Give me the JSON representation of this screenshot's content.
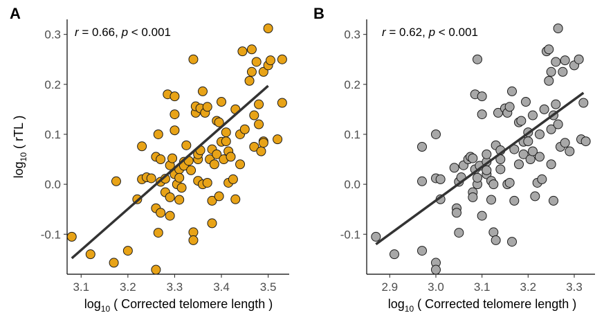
{
  "figure": {
    "ylabel_prefix": "log",
    "ylabel_sub": "10",
    "ylabel_suffix": " ( rTL )",
    "xlabel_prefix": "log",
    "xlabel_sub": "10",
    "xlabel_suffix": " ( Corrected telomere length )"
  },
  "chart_data": [
    {
      "type": "scatter",
      "panel": "A",
      "annotation": {
        "r_symbol": "r",
        "r_text": " = 0.66, ",
        "p_symbol": "p",
        "p_text": " < 0.001"
      },
      "point_color": "#E8A317",
      "line_color": "#333333",
      "xlim": [
        3.07,
        3.545
      ],
      "ylim": [
        -0.18,
        0.33
      ],
      "xticks": [
        3.1,
        3.2,
        3.3,
        3.4,
        3.5
      ],
      "xtick_labels": [
        "3.1",
        "3.2",
        "3.3",
        "3.4",
        "3.5"
      ],
      "yticks": [
        -0.1,
        0.0,
        0.1,
        0.2,
        0.3
      ],
      "ytick_labels": [
        "-0.1",
        "0.0",
        "0.1",
        "0.2",
        "0.3"
      ],
      "fit_line": {
        "x": [
          3.08,
          3.5
        ],
        "y": [
          -0.148,
          0.197
        ]
      },
      "points": [
        [
          3.08,
          -0.105
        ],
        [
          3.12,
          -0.14
        ],
        [
          3.17,
          -0.157
        ],
        [
          3.175,
          0.006
        ],
        [
          3.2,
          -0.133
        ],
        [
          3.22,
          -0.03
        ],
        [
          3.23,
          0.01
        ],
        [
          3.23,
          0.076
        ],
        [
          3.24,
          0.014
        ],
        [
          3.25,
          0.012
        ],
        [
          3.26,
          -0.171
        ],
        [
          3.26,
          -0.048
        ],
        [
          3.265,
          -0.097
        ],
        [
          3.26,
          0.055
        ],
        [
          3.265,
          0.1
        ],
        [
          3.27,
          -0.057
        ],
        [
          3.27,
          0.005
        ],
        [
          3.27,
          0.05
        ],
        [
          3.28,
          -0.016
        ],
        [
          3.28,
          0.011
        ],
        [
          3.285,
          0.18
        ],
        [
          3.29,
          -0.026
        ],
        [
          3.29,
          -0.063
        ],
        [
          3.29,
          0.038
        ],
        [
          3.295,
          0.052
        ],
        [
          3.3,
          0.02
        ],
        [
          3.3,
          0.108
        ],
        [
          3.3,
          0.14
        ],
        [
          3.3,
          0.176
        ],
        [
          3.305,
          0.0
        ],
        [
          3.31,
          -0.031
        ],
        [
          3.31,
          0.03
        ],
        [
          3.31,
          0.013
        ],
        [
          3.315,
          -0.007
        ],
        [
          3.32,
          0.045
        ],
        [
          3.32,
          0.037
        ],
        [
          3.325,
          0.078
        ],
        [
          3.33,
          0.047
        ],
        [
          3.335,
          0.028
        ],
        [
          3.34,
          0.25
        ],
        [
          3.34,
          -0.096
        ],
        [
          3.34,
          -0.112
        ],
        [
          3.345,
          0.143
        ],
        [
          3.345,
          0.156
        ],
        [
          3.35,
          0.05
        ],
        [
          3.35,
          0.007
        ],
        [
          3.35,
          0.06
        ],
        [
          3.355,
          0.068
        ],
        [
          3.355,
          0.152
        ],
        [
          3.36,
          0.186
        ],
        [
          3.36,
          0.0
        ],
        [
          3.365,
          0.143
        ],
        [
          3.37,
          0.155
        ],
        [
          3.37,
          0.003
        ],
        [
          3.375,
          0.05
        ],
        [
          3.38,
          -0.033
        ],
        [
          3.38,
          -0.078
        ],
        [
          3.38,
          0.07
        ],
        [
          3.385,
          0.04
        ],
        [
          3.39,
          0.127
        ],
        [
          3.39,
          0.06
        ],
        [
          3.395,
          0.124
        ],
        [
          3.395,
          -0.024
        ],
        [
          3.4,
          0.165
        ],
        [
          3.4,
          0.085
        ],
        [
          3.405,
          0.05
        ],
        [
          3.41,
          0.104
        ],
        [
          3.41,
          0.086
        ],
        [
          3.415,
          0.066
        ],
        [
          3.415,
          0.003
        ],
        [
          3.42,
          0.055
        ],
        [
          3.425,
          0.01
        ],
        [
          3.43,
          -0.03
        ],
        [
          3.43,
          0.15
        ],
        [
          3.44,
          0.1
        ],
        [
          3.44,
          0.04
        ],
        [
          3.445,
          0.266
        ],
        [
          3.45,
          0.11
        ],
        [
          3.46,
          0.207
        ],
        [
          3.465,
          0.27
        ],
        [
          3.465,
          0.225
        ],
        [
          3.47,
          0.138
        ],
        [
          3.47,
          0.075
        ],
        [
          3.475,
          0.245
        ],
        [
          3.48,
          0.16
        ],
        [
          3.48,
          0.12
        ],
        [
          3.485,
          0.066
        ],
        [
          3.49,
          0.225
        ],
        [
          3.49,
          0.086
        ],
        [
          3.49,
          0.083
        ],
        [
          3.5,
          0.312
        ],
        [
          3.5,
          0.238
        ],
        [
          3.505,
          0.248
        ],
        [
          3.52,
          0.09
        ],
        [
          3.53,
          0.25
        ],
        [
          3.53,
          0.163
        ]
      ]
    },
    {
      "type": "scatter",
      "panel": "B",
      "annotation": {
        "r_symbol": "r",
        "r_text": " = 0.62, ",
        "p_symbol": "p",
        "p_text": " < 0.001"
      },
      "point_color": "#A8A8A8",
      "line_color": "#333333",
      "xlim": [
        2.85,
        3.345
      ],
      "ylim": [
        -0.18,
        0.33
      ],
      "xticks": [
        2.9,
        3.0,
        3.1,
        3.2,
        3.3
      ],
      "xtick_labels": [
        "2.9",
        "3.0",
        "3.1",
        "3.2",
        "3.3"
      ],
      "yticks": [
        -0.1,
        0.0,
        0.1,
        0.2,
        0.3
      ],
      "ytick_labels": [
        "-0.1",
        "0.0",
        "0.1",
        "0.2",
        "0.3"
      ],
      "fit_line": {
        "x": [
          2.87,
          3.32
        ],
        "y": [
          -0.12,
          0.183
        ]
      },
      "points": [
        [
          2.87,
          -0.105
        ],
        [
          2.91,
          -0.14
        ],
        [
          2.97,
          -0.133
        ],
        [
          2.97,
          0.075
        ],
        [
          2.97,
          0.006
        ],
        [
          3.0,
          -0.157
        ],
        [
          3.0,
          -0.171
        ],
        [
          3.0,
          0.1
        ],
        [
          3.0,
          0.012
        ],
        [
          3.01,
          0.01
        ],
        [
          3.01,
          -0.03
        ],
        [
          3.04,
          0.033
        ],
        [
          3.045,
          -0.048
        ],
        [
          3.045,
          -0.057
        ],
        [
          3.05,
          -0.097
        ],
        [
          3.05,
          0.005
        ],
        [
          3.055,
          0.014
        ],
        [
          3.06,
          0.038
        ],
        [
          3.07,
          0.05
        ],
        [
          3.075,
          0.055
        ],
        [
          3.08,
          -0.016
        ],
        [
          3.08,
          0.052
        ],
        [
          3.085,
          0.18
        ],
        [
          3.08,
          -0.026
        ],
        [
          3.085,
          0.03
        ],
        [
          3.09,
          0.0
        ],
        [
          3.09,
          0.013
        ],
        [
          3.09,
          0.25
        ],
        [
          3.095,
          0.037
        ],
        [
          3.1,
          0.14
        ],
        [
          3.1,
          0.176
        ],
        [
          3.1,
          -0.063
        ],
        [
          3.11,
          0.02
        ],
        [
          3.11,
          0.045
        ],
        [
          3.11,
          0.06
        ],
        [
          3.11,
          0.028
        ],
        [
          3.12,
          -0.031
        ],
        [
          3.12,
          0.007
        ],
        [
          3.125,
          0.0
        ],
        [
          3.125,
          -0.096
        ],
        [
          3.13,
          0.078
        ],
        [
          3.13,
          -0.112
        ],
        [
          3.135,
          0.143
        ],
        [
          3.14,
          0.05
        ],
        [
          3.14,
          0.068
        ],
        [
          3.14,
          0.03
        ],
        [
          3.15,
          0.152
        ],
        [
          3.155,
          0.143
        ],
        [
          3.155,
          0.0
        ],
        [
          3.16,
          0.155
        ],
        [
          3.16,
          0.003
        ],
        [
          3.165,
          0.186
        ],
        [
          3.165,
          -0.115
        ],
        [
          3.17,
          0.07
        ],
        [
          3.17,
          -0.033
        ],
        [
          3.18,
          0.04
        ],
        [
          3.18,
          0.124
        ],
        [
          3.185,
          0.127
        ],
        [
          3.19,
          0.06
        ],
        [
          3.19,
          0.085
        ],
        [
          3.195,
          0.165
        ],
        [
          3.2,
          0.104
        ],
        [
          3.2,
          0.086
        ],
        [
          3.205,
          0.05
        ],
        [
          3.21,
          0.066
        ],
        [
          3.215,
          -0.024
        ],
        [
          3.22,
          0.003
        ],
        [
          3.225,
          0.1
        ],
        [
          3.225,
          0.055
        ],
        [
          3.23,
          0.01
        ],
        [
          3.235,
          0.15
        ],
        [
          3.24,
          0.266
        ],
        [
          3.245,
          0.207
        ],
        [
          3.245,
          0.27
        ],
        [
          3.25,
          0.225
        ],
        [
          3.25,
          0.11
        ],
        [
          3.25,
          0.04
        ],
        [
          3.255,
          0.138
        ],
        [
          3.26,
          0.245
        ],
        [
          3.26,
          0.16
        ],
        [
          3.265,
          0.12
        ],
        [
          3.265,
          0.312
        ],
        [
          3.27,
          0.075
        ],
        [
          3.275,
          0.225
        ],
        [
          3.28,
          0.248
        ],
        [
          3.28,
          0.083
        ],
        [
          3.29,
          0.066
        ],
        [
          3.3,
          0.238
        ],
        [
          3.31,
          0.25
        ],
        [
          3.315,
          0.09
        ],
        [
          3.32,
          0.163
        ],
        [
          3.325,
          0.086
        ],
        [
          3.255,
          -0.033
        ],
        [
          3.21,
          0.138
        ]
      ]
    }
  ]
}
